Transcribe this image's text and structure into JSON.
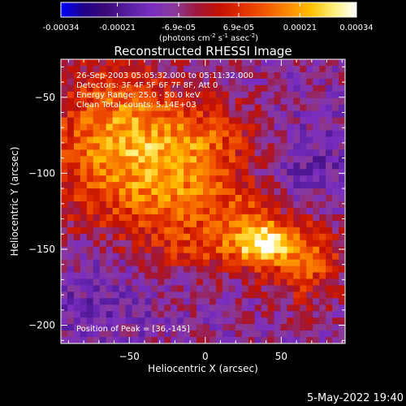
{
  "chart_data": {
    "type": "heatmap",
    "title": "Reconstructed RHESSI Image",
    "xlabel": "Heliocentric X (arcsec)",
    "ylabel": "Heliocentric Y (arcsec)",
    "xlim": [
      -95,
      92
    ],
    "ylim": [
      -212,
      -25
    ],
    "x_ticks": [
      -50,
      0,
      50
    ],
    "y_ticks": [
      -50,
      -100,
      -150,
      -200
    ],
    "colorbar": {
      "range": [
        -0.00034,
        0.00034
      ],
      "tick_values": [
        -0.00034,
        -0.00021,
        -6.9e-05,
        6.9e-05,
        0.00021,
        0.00034
      ],
      "tick_labels": [
        "-0.00034",
        "-0.00021",
        "-6.9e-05",
        "6.9e-05",
        "0.00021",
        "0.00034"
      ],
      "units_text": "(photons cm",
      "units_exp1": "-2",
      "units_mid": " s",
      "units_exp2": "-1",
      "units_mid2": " asec",
      "units_exp3": "-2",
      "units_close": ")"
    },
    "colormap": [
      "#0000ff",
      "#1e0088",
      "#3b0a78",
      "#5a1ea3",
      "#7a2dc0",
      "#8a3a9a",
      "#a0173a",
      "#c41200",
      "#e33000",
      "#f25a00",
      "#fb8a00",
      "#ffc000",
      "#fff07a",
      "#ffffff"
    ],
    "annotations": [
      "26-Sep-2003 05:05:32.000 to 05:11:32.000",
      "Detectors: 3F 4F 5F 6F 7F 8F, Att 0",
      "Energy Range: 25.0 - 50.0 keV",
      "Clean     Total counts: 5.14E+03"
    ],
    "peak_label": "Position of Peak = [36,-145]",
    "peak": [
      36,
      -145
    ]
  },
  "footer": {
    "date": "5-May-2022 19:40"
  }
}
